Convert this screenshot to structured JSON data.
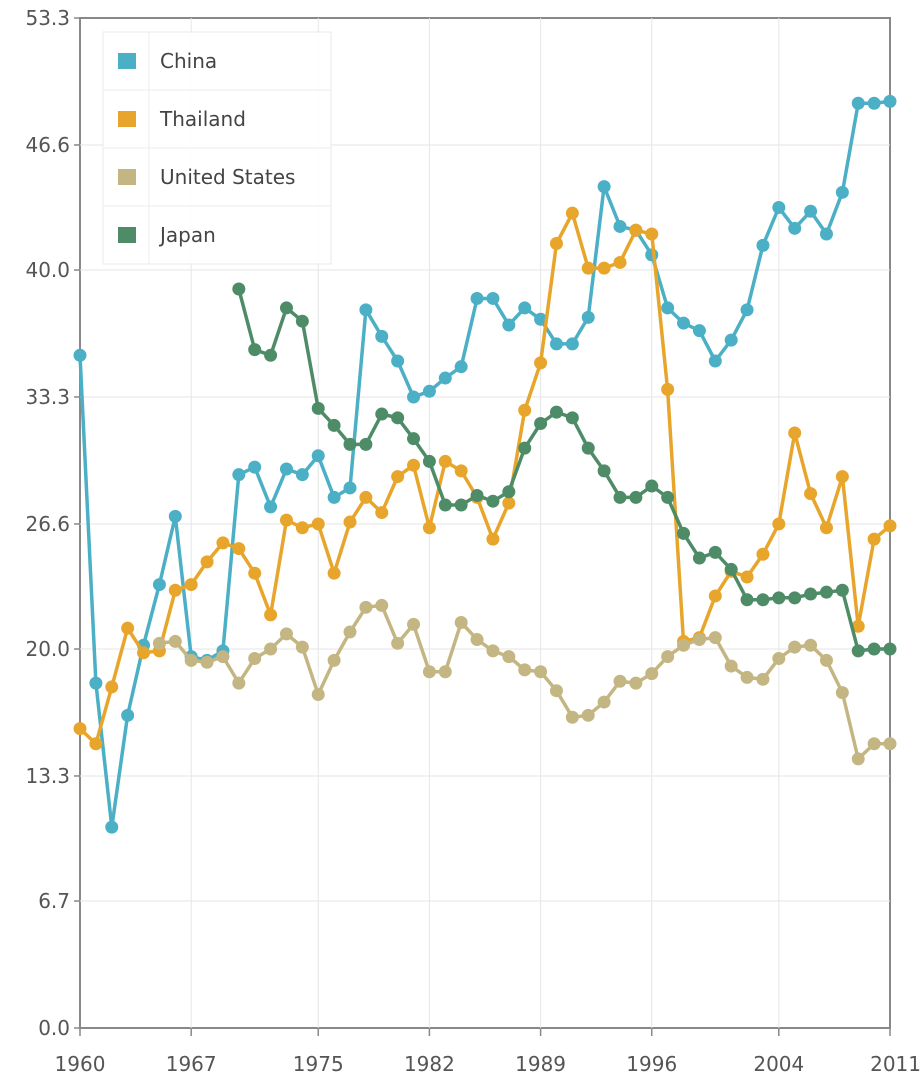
{
  "chart_data": {
    "type": "line",
    "title": "",
    "xlabel": "",
    "ylabel": "",
    "x": [
      1960,
      1961,
      1962,
      1963,
      1964,
      1965,
      1966,
      1967,
      1968,
      1969,
      1970,
      1971,
      1972,
      1973,
      1974,
      1975,
      1976,
      1977,
      1978,
      1979,
      1980,
      1981,
      1982,
      1983,
      1984,
      1985,
      1986,
      1987,
      1988,
      1989,
      1990,
      1991,
      1992,
      1993,
      1994,
      1995,
      1996,
      1997,
      1998,
      1999,
      2000,
      2001,
      2002,
      2003,
      2004,
      2005,
      2006,
      2007,
      2008,
      2009,
      2010,
      2011
    ],
    "xlim": [
      1960,
      2011
    ],
    "ylim": [
      0,
      53.3
    ],
    "y_ticks": [
      "0.0",
      "6.7",
      "13.3",
      "20.0",
      "26.6",
      "33.3",
      "40.0",
      "46.6",
      "53.3"
    ],
    "y_tick_values": [
      0,
      6.7,
      13.3,
      20.0,
      26.6,
      33.3,
      40.0,
      46.6,
      53.3
    ],
    "x_ticks": [
      "1960",
      "1967",
      "1975",
      "1982",
      "1989",
      "1996",
      "2004",
      "2011"
    ],
    "x_tick_values": [
      1960,
      1967,
      1975,
      1982,
      1989,
      1996,
      2004,
      2011
    ],
    "grid": true,
    "legend_position": "top-left",
    "series": [
      {
        "name": "China",
        "color": "#4bafc6",
        "values": [
          35.5,
          18.2,
          10.6,
          16.5,
          20.2,
          23.4,
          27.0,
          19.6,
          19.4,
          19.9,
          29.2,
          29.6,
          27.5,
          29.5,
          29.2,
          30.2,
          28.0,
          28.5,
          37.9,
          36.5,
          35.2,
          33.3,
          33.6,
          34.3,
          34.9,
          38.5,
          38.5,
          37.1,
          38.0,
          37.4,
          36.1,
          36.1,
          37.5,
          44.4,
          42.3,
          42.1,
          40.8,
          38.0,
          37.2,
          36.8,
          35.2,
          36.3,
          37.9,
          41.3,
          43.3,
          42.2,
          43.1,
          41.9,
          44.1,
          48.8,
          48.8,
          48.9
        ]
      },
      {
        "name": "Thailand",
        "color": "#e8a52b",
        "values": [
          15.8,
          15.0,
          18.0,
          21.1,
          19.8,
          19.9,
          23.1,
          23.4,
          24.6,
          25.6,
          25.3,
          24.0,
          21.8,
          26.8,
          26.4,
          26.6,
          24.0,
          26.7,
          28.0,
          27.2,
          29.1,
          29.7,
          26.4,
          29.9,
          29.4,
          28.0,
          25.8,
          27.7,
          32.6,
          35.1,
          41.4,
          43.0,
          40.1,
          40.1,
          40.4,
          42.1,
          41.9,
          33.7,
          20.4,
          20.6,
          22.8,
          24.1,
          23.8,
          25.0,
          26.6,
          31.4,
          28.2,
          26.4,
          29.1,
          21.2,
          25.8,
          26.5
        ]
      },
      {
        "name": "United States",
        "color": "#c4b683",
        "values": [
          null,
          null,
          null,
          null,
          null,
          20.3,
          20.4,
          19.4,
          19.3,
          19.6,
          18.2,
          19.5,
          20.0,
          20.8,
          20.1,
          17.6,
          19.4,
          20.9,
          22.2,
          22.3,
          20.3,
          21.3,
          18.8,
          18.8,
          21.4,
          20.5,
          19.9,
          19.6,
          18.9,
          18.8,
          17.8,
          16.4,
          16.5,
          17.2,
          18.3,
          18.2,
          18.7,
          19.6,
          20.2,
          20.5,
          20.6,
          19.1,
          18.5,
          18.4,
          19.5,
          20.1,
          20.2,
          19.4,
          17.7,
          14.2,
          15.0,
          15.0
        ]
      },
      {
        "name": "Japan",
        "color": "#4e8c68",
        "values": [
          null,
          null,
          null,
          null,
          null,
          null,
          null,
          null,
          null,
          null,
          39.0,
          35.8,
          35.5,
          38.0,
          37.3,
          32.7,
          31.8,
          30.8,
          30.8,
          32.4,
          32.2,
          31.1,
          29.9,
          27.6,
          27.6,
          28.1,
          27.8,
          28.3,
          30.6,
          31.9,
          32.5,
          32.2,
          30.6,
          29.4,
          28.0,
          28.0,
          28.6,
          28.0,
          26.1,
          24.8,
          25.1,
          24.2,
          22.6,
          22.6,
          22.7,
          22.7,
          22.9,
          23.0,
          23.1,
          19.9,
          20.0,
          20.0
        ]
      }
    ]
  }
}
